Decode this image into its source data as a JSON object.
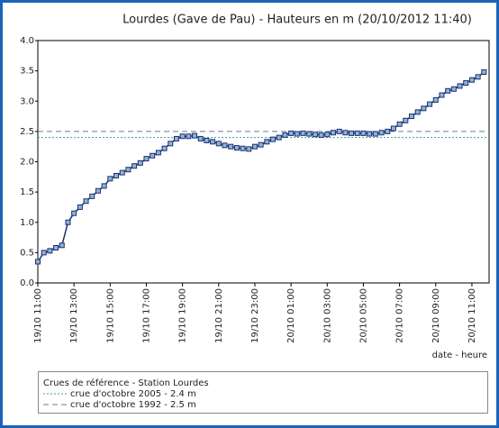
{
  "chart_data": {
    "type": "line",
    "title": "Lourdes (Gave de Pau) - Hauteurs en m (20/10/2012 11:40)",
    "x_label": "date - heure",
    "x": [
      "2012-10-19T11:00",
      "2012-10-19T11:20",
      "2012-10-19T11:40",
      "2012-10-19T12:00",
      "2012-10-19T12:20",
      "2012-10-19T12:40",
      "2012-10-19T13:00",
      "2012-10-19T13:20",
      "2012-10-19T13:40",
      "2012-10-19T14:00",
      "2012-10-19T14:20",
      "2012-10-19T14:40",
      "2012-10-19T15:00",
      "2012-10-19T15:20",
      "2012-10-19T15:40",
      "2012-10-19T16:00",
      "2012-10-19T16:20",
      "2012-10-19T16:40",
      "2012-10-19T17:00",
      "2012-10-19T17:20",
      "2012-10-19T17:40",
      "2012-10-19T18:00",
      "2012-10-19T18:20",
      "2012-10-19T18:40",
      "2012-10-19T19:00",
      "2012-10-19T19:20",
      "2012-10-19T19:40",
      "2012-10-19T20:00",
      "2012-10-19T20:20",
      "2012-10-19T20:40",
      "2012-10-19T21:00",
      "2012-10-19T21:20",
      "2012-10-19T21:40",
      "2012-10-19T22:00",
      "2012-10-19T22:20",
      "2012-10-19T22:40",
      "2012-10-19T23:00",
      "2012-10-19T23:20",
      "2012-10-19T23:40",
      "2012-10-20T00:00",
      "2012-10-20T00:20",
      "2012-10-20T00:40",
      "2012-10-20T01:00",
      "2012-10-20T01:20",
      "2012-10-20T01:40",
      "2012-10-20T02:00",
      "2012-10-20T02:20",
      "2012-10-20T02:40",
      "2012-10-20T03:00",
      "2012-10-20T03:20",
      "2012-10-20T03:40",
      "2012-10-20T04:00",
      "2012-10-20T04:20",
      "2012-10-20T04:40",
      "2012-10-20T05:00",
      "2012-10-20T05:20",
      "2012-10-20T05:40",
      "2012-10-20T06:00",
      "2012-10-20T06:20",
      "2012-10-20T06:40",
      "2012-10-20T07:00",
      "2012-10-20T07:20",
      "2012-10-20T07:40",
      "2012-10-20T08:00",
      "2012-10-20T08:20",
      "2012-10-20T08:40",
      "2012-10-20T09:00",
      "2012-10-20T09:20",
      "2012-10-20T09:40",
      "2012-10-20T10:00",
      "2012-10-20T10:20",
      "2012-10-20T10:40",
      "2012-10-20T11:00",
      "2012-10-20T11:20",
      "2012-10-20T11:40"
    ],
    "series": [
      {
        "color": "#1a2f6e",
        "marker_fill": "#8fb3d9",
        "values": [
          0.35,
          0.5,
          0.53,
          0.58,
          0.62,
          1.0,
          1.15,
          1.25,
          1.35,
          1.43,
          1.52,
          1.6,
          1.72,
          1.77,
          1.82,
          1.87,
          1.93,
          1.98,
          2.05,
          2.1,
          2.15,
          2.22,
          2.3,
          2.38,
          2.42,
          2.42,
          2.43,
          2.38,
          2.35,
          2.33,
          2.3,
          2.27,
          2.25,
          2.23,
          2.22,
          2.21,
          2.25,
          2.28,
          2.33,
          2.37,
          2.4,
          2.44,
          2.47,
          2.46,
          2.47,
          2.46,
          2.45,
          2.44,
          2.45,
          2.48,
          2.5,
          2.48,
          2.47,
          2.47,
          2.47,
          2.46,
          2.46,
          2.48,
          2.5,
          2.55,
          2.62,
          2.68,
          2.75,
          2.82,
          2.88,
          2.95,
          3.02,
          3.1,
          3.17,
          3.2,
          3.25,
          3.3,
          3.35,
          3.4,
          3.48
        ]
      }
    ],
    "xlim": [
      "2012-10-19T11:00",
      "2012-10-20T11:57"
    ],
    "xticks": [
      {
        "value": "2012-10-19T11:00",
        "label": "19/10 11:00"
      },
      {
        "value": "2012-10-19T13:00",
        "label": "19/10 13:00"
      },
      {
        "value": "2012-10-19T15:00",
        "label": "19/10 15:00"
      },
      {
        "value": "2012-10-19T17:00",
        "label": "19/10 17:00"
      },
      {
        "value": "2012-10-19T19:00",
        "label": "19/10 19:00"
      },
      {
        "value": "2012-10-19T21:00",
        "label": "19/10 21:00"
      },
      {
        "value": "2012-10-19T23:00",
        "label": "19/10 23:00"
      },
      {
        "value": "2012-10-20T01:00",
        "label": "20/10 01:00"
      },
      {
        "value": "2012-10-20T03:00",
        "label": "20/10 03:00"
      },
      {
        "value": "2012-10-20T05:00",
        "label": "20/10 05:00"
      },
      {
        "value": "2012-10-20T07:00",
        "label": "20/10 07:00"
      },
      {
        "value": "2012-10-20T09:00",
        "label": "20/10 09:00"
      },
      {
        "value": "2012-10-20T11:00",
        "label": "20/10 11:00"
      }
    ],
    "ylim": [
      0,
      4
    ],
    "yticks": [
      {
        "value": 0,
        "label": "0.0"
      },
      0.5,
      {
        "value": 1,
        "label": "1.0"
      },
      1.5,
      {
        "value": 2,
        "label": "2.0"
      },
      2.5,
      {
        "value": 3,
        "label": "3.0"
      },
      3.5,
      {
        "value": 4,
        "label": "4.0"
      }
    ],
    "legend_title": "Crues de référence - Station Lourdes",
    "reference_lines": [
      {
        "name": "crue d'octobre 2005 - 2.4 m",
        "value": 2.4,
        "color": "#2ba89a",
        "style": "dotted"
      },
      {
        "name": "crue d'octobre 1992 - 2.5 m",
        "value": 2.5,
        "color": "#6a7a9a",
        "style": "dashed"
      }
    ]
  }
}
